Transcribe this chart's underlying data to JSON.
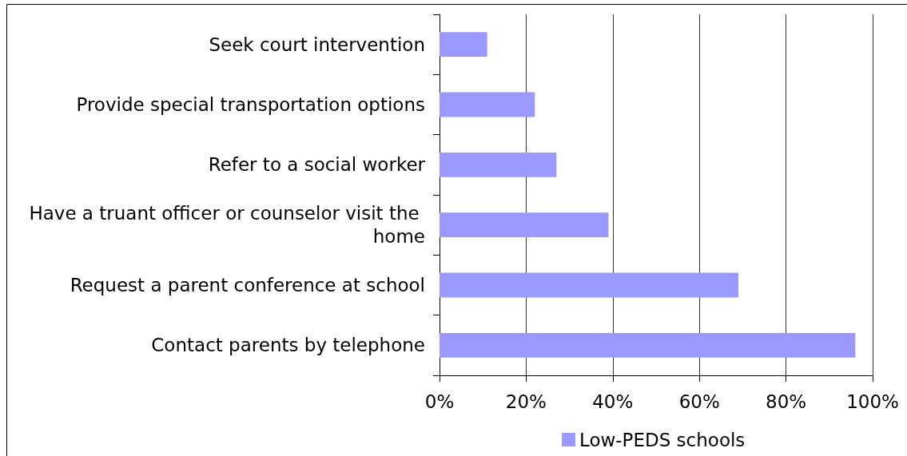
{
  "chart_data": {
    "type": "bar",
    "orientation": "horizontal",
    "categories": [
      "Seek court intervention",
      "Provide special transportation options",
      "Refer to a social worker",
      "Have a truant officer or counselor visit the home",
      "Request a parent conference at school",
      "Contact parents by telephone"
    ],
    "series": [
      {
        "name": "Low-PEDS schools",
        "color": "#9999ff",
        "values": [
          11,
          22,
          27,
          39,
          69,
          96
        ]
      }
    ],
    "xlim": [
      0,
      100
    ],
    "xticks": [
      {
        "value": 0,
        "label": "0%"
      },
      {
        "value": 20,
        "label": "20%"
      },
      {
        "value": 40,
        "label": "40%"
      },
      {
        "value": 60,
        "label": "60%"
      },
      {
        "value": 80,
        "label": "80%"
      },
      {
        "value": 100,
        "label": "100%"
      }
    ],
    "grid": "x",
    "legend": "bottom"
  }
}
